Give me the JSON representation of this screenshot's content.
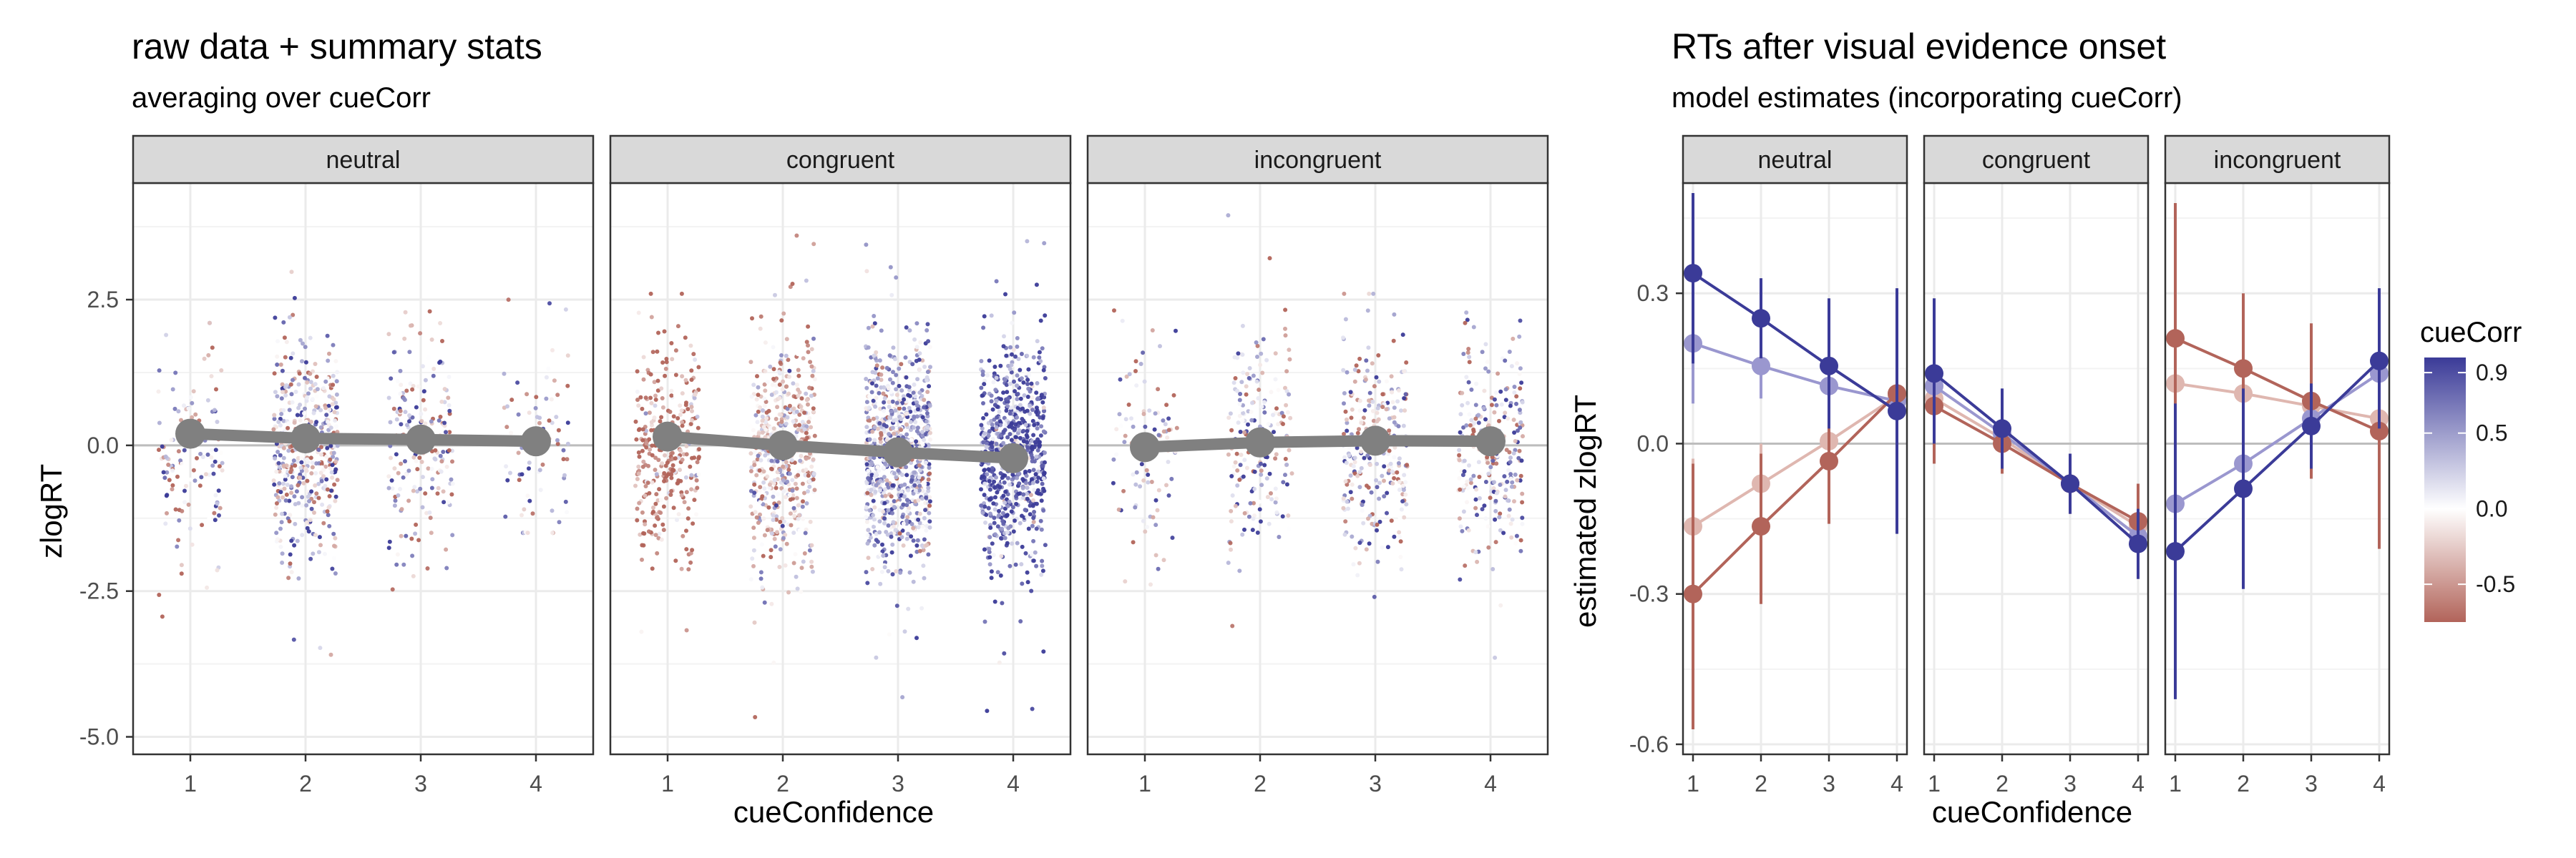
{
  "chart_data": [
    {
      "type": "scatter",
      "title": "raw data + summary stats",
      "subtitle": "averaging over cueCorr",
      "xlabel": "cueConfidence",
      "ylabel": "zlogRT",
      "x_ticks": [
        "1",
        "2",
        "3",
        "4"
      ],
      "y_ticks": [
        2.5,
        0.0,
        -2.5,
        -5.0
      ],
      "y_tick_labels": [
        "2.5",
        "0.0",
        "-2.5",
        "-5.0"
      ],
      "ylim": [
        -5.3,
        4.5
      ],
      "reference_line_y": 0,
      "color_by": "cueCorr",
      "panels": [
        {
          "label": "neutral",
          "summary_means": [
            {
              "x": 1,
              "y": 0.2
            },
            {
              "x": 2,
              "y": 0.12
            },
            {
              "x": 3,
              "y": 0.1
            },
            {
              "x": 4,
              "y": 0.07
            }
          ],
          "raw_point_counts": [
            130,
            450,
            200,
            80
          ],
          "raw_spread": [
            {
              "min": -3.0,
              "max": 2.1
            },
            {
              "min": -3.9,
              "max": 3.0
            },
            {
              "min": -3.1,
              "max": 3.2
            },
            {
              "min": -1.5,
              "max": 2.5
            }
          ]
        },
        {
          "label": "congruent",
          "summary_means": [
            {
              "x": 1,
              "y": 0.15
            },
            {
              "x": 2,
              "y": 0.0
            },
            {
              "x": 3,
              "y": -0.12
            },
            {
              "x": 4,
              "y": -0.22
            }
          ],
          "raw_point_counts": [
            330,
            520,
            800,
            700
          ],
          "raw_spread": [
            {
              "min": -3.3,
              "max": 2.6
            },
            {
              "min": -4.9,
              "max": 3.7
            },
            {
              "min": -4.5,
              "max": 3.5
            },
            {
              "min": -4.7,
              "max": 3.6
            }
          ]
        },
        {
          "label": "incongruent",
          "summary_means": [
            {
              "x": 1,
              "y": -0.03
            },
            {
              "x": 2,
              "y": 0.05
            },
            {
              "x": 3,
              "y": 0.08
            },
            {
              "x": 4,
              "y": 0.07
            }
          ],
          "raw_point_counts": [
            90,
            200,
            270,
            250
          ],
          "raw_spread": [
            {
              "min": -2.9,
              "max": 2.6
            },
            {
              "min": -3.3,
              "max": 4.0
            },
            {
              "min": -2.6,
              "max": 2.6
            },
            {
              "min": -3.8,
              "max": 3.2
            }
          ]
        }
      ]
    },
    {
      "type": "line",
      "title": "RTs after visual evidence onset",
      "subtitle": "model estimates (incorporating cueCorr)",
      "xlabel": "cueConfidence",
      "ylabel": "estimated zlogRT",
      "x_ticks": [
        "1",
        "2",
        "3",
        "4"
      ],
      "y_ticks": [
        0.3,
        0.0,
        -0.3,
        -0.6
      ],
      "y_tick_labels": [
        "0.3",
        "0.0",
        "-0.3",
        "-0.6"
      ],
      "ylim": [
        -0.62,
        0.52
      ],
      "reference_line_y": 0,
      "cueCorr_levels": [
        0.9,
        0.5,
        0.0,
        -0.5
      ],
      "panels": [
        {
          "label": "neutral",
          "series": [
            {
              "cueCorr": 0.9,
              "values": [
                0.34,
                0.25,
                0.155,
                0.065
              ],
              "lower": [
                0.16,
                0.17,
                0.03,
                -0.18
              ],
              "upper": [
                0.5,
                0.33,
                0.29,
                0.31
              ]
            },
            {
              "cueCorr": 0.5,
              "values": [
                0.2,
                0.155,
                0.115,
                0.085
              ],
              "lower": [
                0.08,
                0.09,
                0.03,
                -0.04
              ],
              "upper": [
                0.3,
                0.22,
                0.2,
                0.21
              ]
            },
            {
              "cueCorr": 0.0,
              "values": [
                -0.165,
                -0.08,
                0.005,
                0.095
              ],
              "lower": [
                -0.3,
                -0.16,
                -0.07,
                -0.02
              ],
              "upper": [
                -0.03,
                0.0,
                0.08,
                0.2
              ]
            },
            {
              "cueCorr": -0.5,
              "values": [
                -0.3,
                -0.165,
                -0.035,
                0.1
              ],
              "lower": [
                -0.57,
                -0.32,
                -0.16,
                -0.04
              ],
              "upper": [
                -0.04,
                -0.02,
                0.1,
                0.25
              ]
            }
          ]
        },
        {
          "label": "congruent",
          "series": [
            {
              "cueCorr": 0.9,
              "values": [
                0.14,
                0.03,
                -0.08,
                -0.2
              ],
              "lower": [
                0.0,
                -0.05,
                -0.14,
                -0.27
              ],
              "upper": [
                0.29,
                0.11,
                -0.02,
                -0.13
              ]
            },
            {
              "cueCorr": 0.5,
              "values": [
                0.115,
                0.02,
                -0.08,
                -0.185
              ],
              "lower": [
                0.0,
                -0.05,
                -0.14,
                -0.26
              ],
              "upper": [
                0.24,
                0.09,
                -0.02,
                -0.11
              ]
            },
            {
              "cueCorr": 0.0,
              "values": [
                0.09,
                0.01,
                -0.08,
                -0.165
              ],
              "lower": [
                -0.02,
                -0.05,
                -0.14,
                -0.24
              ],
              "upper": [
                0.2,
                0.07,
                -0.02,
                -0.09
              ]
            },
            {
              "cueCorr": -0.5,
              "values": [
                0.075,
                0.0,
                -0.08,
                -0.155
              ],
              "lower": [
                -0.04,
                -0.06,
                -0.14,
                -0.23
              ],
              "upper": [
                0.19,
                0.06,
                -0.02,
                -0.08
              ]
            }
          ]
        },
        {
          "label": "incongruent",
          "series": [
            {
              "cueCorr": 0.9,
              "values": [
                -0.215,
                -0.09,
                0.035,
                0.165
              ],
              "lower": [
                -0.51,
                -0.29,
                -0.05,
                0.03
              ],
              "upper": [
                0.08,
                0.11,
                0.12,
                0.31
              ]
            },
            {
              "cueCorr": 0.5,
              "values": [
                -0.12,
                -0.04,
                0.05,
                0.14
              ],
              "lower": [
                -0.3,
                -0.17,
                -0.03,
                0.02
              ],
              "upper": [
                0.06,
                0.09,
                0.13,
                0.26
              ]
            },
            {
              "cueCorr": 0.0,
              "values": [
                0.12,
                0.1,
                0.075,
                0.05
              ],
              "lower": [
                0.0,
                0.02,
                0.0,
                -0.08
              ],
              "upper": [
                0.24,
                0.18,
                0.15,
                0.18
              ]
            },
            {
              "cueCorr": -0.5,
              "values": [
                0.21,
                0.15,
                0.085,
                0.025
              ],
              "lower": [
                -0.06,
                0.0,
                -0.07,
                -0.21
              ],
              "upper": [
                0.48,
                0.3,
                0.24,
                0.26
              ]
            }
          ]
        }
      ],
      "legend": {
        "title": "cueCorr",
        "position": "right",
        "type": "gradient",
        "tick_values": [
          0.9,
          0.5,
          0.0,
          -0.5
        ],
        "tick_labels": [
          "0.9",
          "0.5",
          "0.0",
          "-0.5"
        ],
        "range": [
          -0.75,
          1.0
        ],
        "colors": {
          "low": "#b2645a",
          "mid": "#ffffff",
          "high": "#3b3b98"
        }
      }
    }
  ],
  "colors": {
    "strip_fill": "#d9d9d9",
    "panel_border": "#333333",
    "grid": "#ebebeb",
    "reference_line": "#bdbdbd",
    "summary": "#808080",
    "low": "#b2645a",
    "mid": "#ffffff",
    "high": "#3b3b98"
  }
}
